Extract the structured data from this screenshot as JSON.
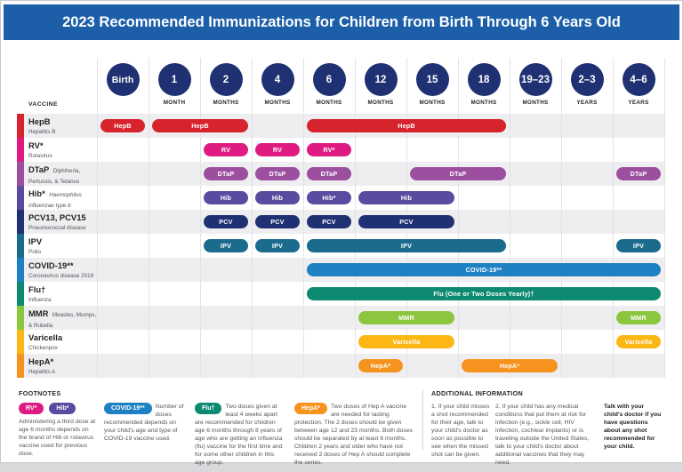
{
  "page": {
    "title": "2023 Recommended Immunizations for Children from Birth Through 6 Years Old"
  },
  "colors": {
    "banner_blue": "#1c5fa8",
    "age_circle_navy": "#1f3172"
  },
  "table": {
    "vaccine_header": "VACCINE",
    "columns": [
      {
        "circle": "Birth",
        "unit": ""
      },
      {
        "circle": "1",
        "unit": "MONTH"
      },
      {
        "circle": "2",
        "unit": "MONTHS"
      },
      {
        "circle": "4",
        "unit": "MONTHS"
      },
      {
        "circle": "6",
        "unit": "MONTHS"
      },
      {
        "circle": "12",
        "unit": "MONTHS"
      },
      {
        "circle": "15",
        "unit": "MONTHS"
      },
      {
        "circle": "18",
        "unit": "MONTHS"
      },
      {
        "circle": "19–23",
        "unit": "MONTHS"
      },
      {
        "circle": "2–3",
        "unit": "YEARS"
      },
      {
        "circle": "4–6",
        "unit": "YEARS"
      }
    ],
    "rows": [
      {
        "name": "HepB",
        "subtitle": "Hepatitis B",
        "subtitle_inline": false,
        "color": "#d7232b",
        "bars": [
          {
            "label": "HepB",
            "from": 0,
            "to": 0
          },
          {
            "label": "HepB",
            "from": 1,
            "to": 2
          },
          {
            "label": "HepB",
            "from": 4,
            "to": 7
          }
        ]
      },
      {
        "name": "RV*",
        "subtitle": "Rotavirus",
        "subtitle_inline": false,
        "color": "#df1b82",
        "bars": [
          {
            "label": "RV",
            "from": 2,
            "to": 2
          },
          {
            "label": "RV",
            "from": 3,
            "to": 3
          },
          {
            "label": "RV*",
            "from": 4,
            "to": 4
          }
        ]
      },
      {
        "name": "DTaP",
        "subtitle": "Diphtheria, Pertussis, & Tetanus",
        "subtitle_inline": true,
        "color": "#9c4f9f",
        "bars": [
          {
            "label": "DTaP",
            "from": 2,
            "to": 2
          },
          {
            "label": "DTaP",
            "from": 3,
            "to": 3
          },
          {
            "label": "DTaP",
            "from": 4,
            "to": 4
          },
          {
            "label": "DTaP",
            "from": 6,
            "to": 7
          },
          {
            "label": "DTaP",
            "from": 10,
            "to": 10
          }
        ]
      },
      {
        "name": "Hib*",
        "subtitle": "Haemophilus influenzae type b",
        "subtitle_inline": true,
        "subtitle_italic": true,
        "color": "#5b4ba0",
        "bars": [
          {
            "label": "Hib",
            "from": 2,
            "to": 2
          },
          {
            "label": "Hib",
            "from": 3,
            "to": 3
          },
          {
            "label": "Hib*",
            "from": 4,
            "to": 4
          },
          {
            "label": "Hib",
            "from": 5,
            "to": 6
          }
        ]
      },
      {
        "name": "PCV13, PCV15",
        "subtitle": "Pneumococcal disease",
        "subtitle_inline": false,
        "color": "#1f3172",
        "bars": [
          {
            "label": "PCV",
            "from": 2,
            "to": 2
          },
          {
            "label": "PCV",
            "from": 3,
            "to": 3
          },
          {
            "label": "PCV",
            "from": 4,
            "to": 4
          },
          {
            "label": "PCV",
            "from": 5,
            "to": 6
          }
        ]
      },
      {
        "name": "IPV",
        "subtitle": "Polio",
        "subtitle_inline": false,
        "color": "#1b6b8d",
        "bars": [
          {
            "label": "IPV",
            "from": 2,
            "to": 2
          },
          {
            "label": "IPV",
            "from": 3,
            "to": 3
          },
          {
            "label": "IPV",
            "from": 4,
            "to": 7
          },
          {
            "label": "IPV",
            "from": 10,
            "to": 10
          }
        ]
      },
      {
        "name": "COVID-19**",
        "subtitle": "Coronavirus disease 2019",
        "subtitle_inline": false,
        "color": "#1e81c4",
        "bars": [
          {
            "label": "COVID-19**",
            "from": 4,
            "to": 10
          }
        ]
      },
      {
        "name": "Flu†",
        "subtitle": "Influenza",
        "subtitle_inline": false,
        "color": "#0f8a72",
        "bars": [
          {
            "label": "Flu (One or Two Doses Yearly)†",
            "from": 4,
            "to": 10
          }
        ]
      },
      {
        "name": "MMR",
        "subtitle": "Measles, Mumps, & Rubella",
        "subtitle_inline": true,
        "color": "#8cc63f",
        "bars": [
          {
            "label": "MMR",
            "from": 5,
            "to": 6
          },
          {
            "label": "MMR",
            "from": 10,
            "to": 10
          }
        ]
      },
      {
        "name": "Varicella",
        "subtitle": "Chickenpox",
        "subtitle_inline": false,
        "color": "#fdb714",
        "bars": [
          {
            "label": "Varicella",
            "from": 5,
            "to": 6
          },
          {
            "label": "Varicella",
            "from": 10,
            "to": 10
          }
        ]
      },
      {
        "name": "HepA*",
        "subtitle": "Hepatitis A",
        "subtitle_inline": false,
        "color": "#f6931e",
        "bars": [
          {
            "label": "HepA*",
            "from": 5,
            "to": 5
          },
          {
            "label": "HepA*",
            "from": 7,
            "to": 8
          }
        ]
      }
    ]
  },
  "footnotes": {
    "heading": "FOOTNOTES",
    "items": [
      {
        "pills": [
          {
            "label": "RV*",
            "color": "#df1b82"
          },
          {
            "label": "Hib*",
            "color": "#5b4ba0"
          }
        ],
        "pills_layout": "row",
        "text": "Administering a third dose at age 6 months depends on the brand of Hib or rotavirus vaccine used for previous dose."
      },
      {
        "pills": [
          {
            "label": "COVID-19**",
            "color": "#1e81c4"
          }
        ],
        "pills_layout": "float",
        "text": "Number of doses recommended depends on your child's age and type of COVID-19 vaccine used."
      },
      {
        "pills": [
          {
            "label": "Flu†",
            "color": "#0f8a72"
          }
        ],
        "pills_layout": "float",
        "text": "Two doses given at least 4 weeks apart are recommended for children age 6 months through 8 years of age who are getting an influenza (flu) vaccine for the first time and for some other children in this age group."
      },
      {
        "pills": [
          {
            "label": "HepA*",
            "color": "#f6931e"
          }
        ],
        "pills_layout": "float",
        "text": "Two doses of Hep A vaccine are needed for lasting protection. The 2 doses should be given between age 12 and 23 months. Both doses should be separated by at least 6 months. Children 2 years and older who have not received 2 doses of Hep A should complete the series."
      }
    ]
  },
  "additional_information": {
    "heading": "ADDITIONAL INFORMATION",
    "items": [
      "1. If your child misses a shot recommended for their age, talk to your child's doctor as soon as possible to see when the missed shot can be given.",
      "2. If your child has any medical conditions that put them at risk for infection (e.g., sickle cell, HIV infection, cochlear implants) or is traveling outside the United States, talk to your child's doctor about additional vaccines that they may need."
    ],
    "emphasis": "Talk with your child's doctor if you have questions about any shot recommended for your child."
  }
}
